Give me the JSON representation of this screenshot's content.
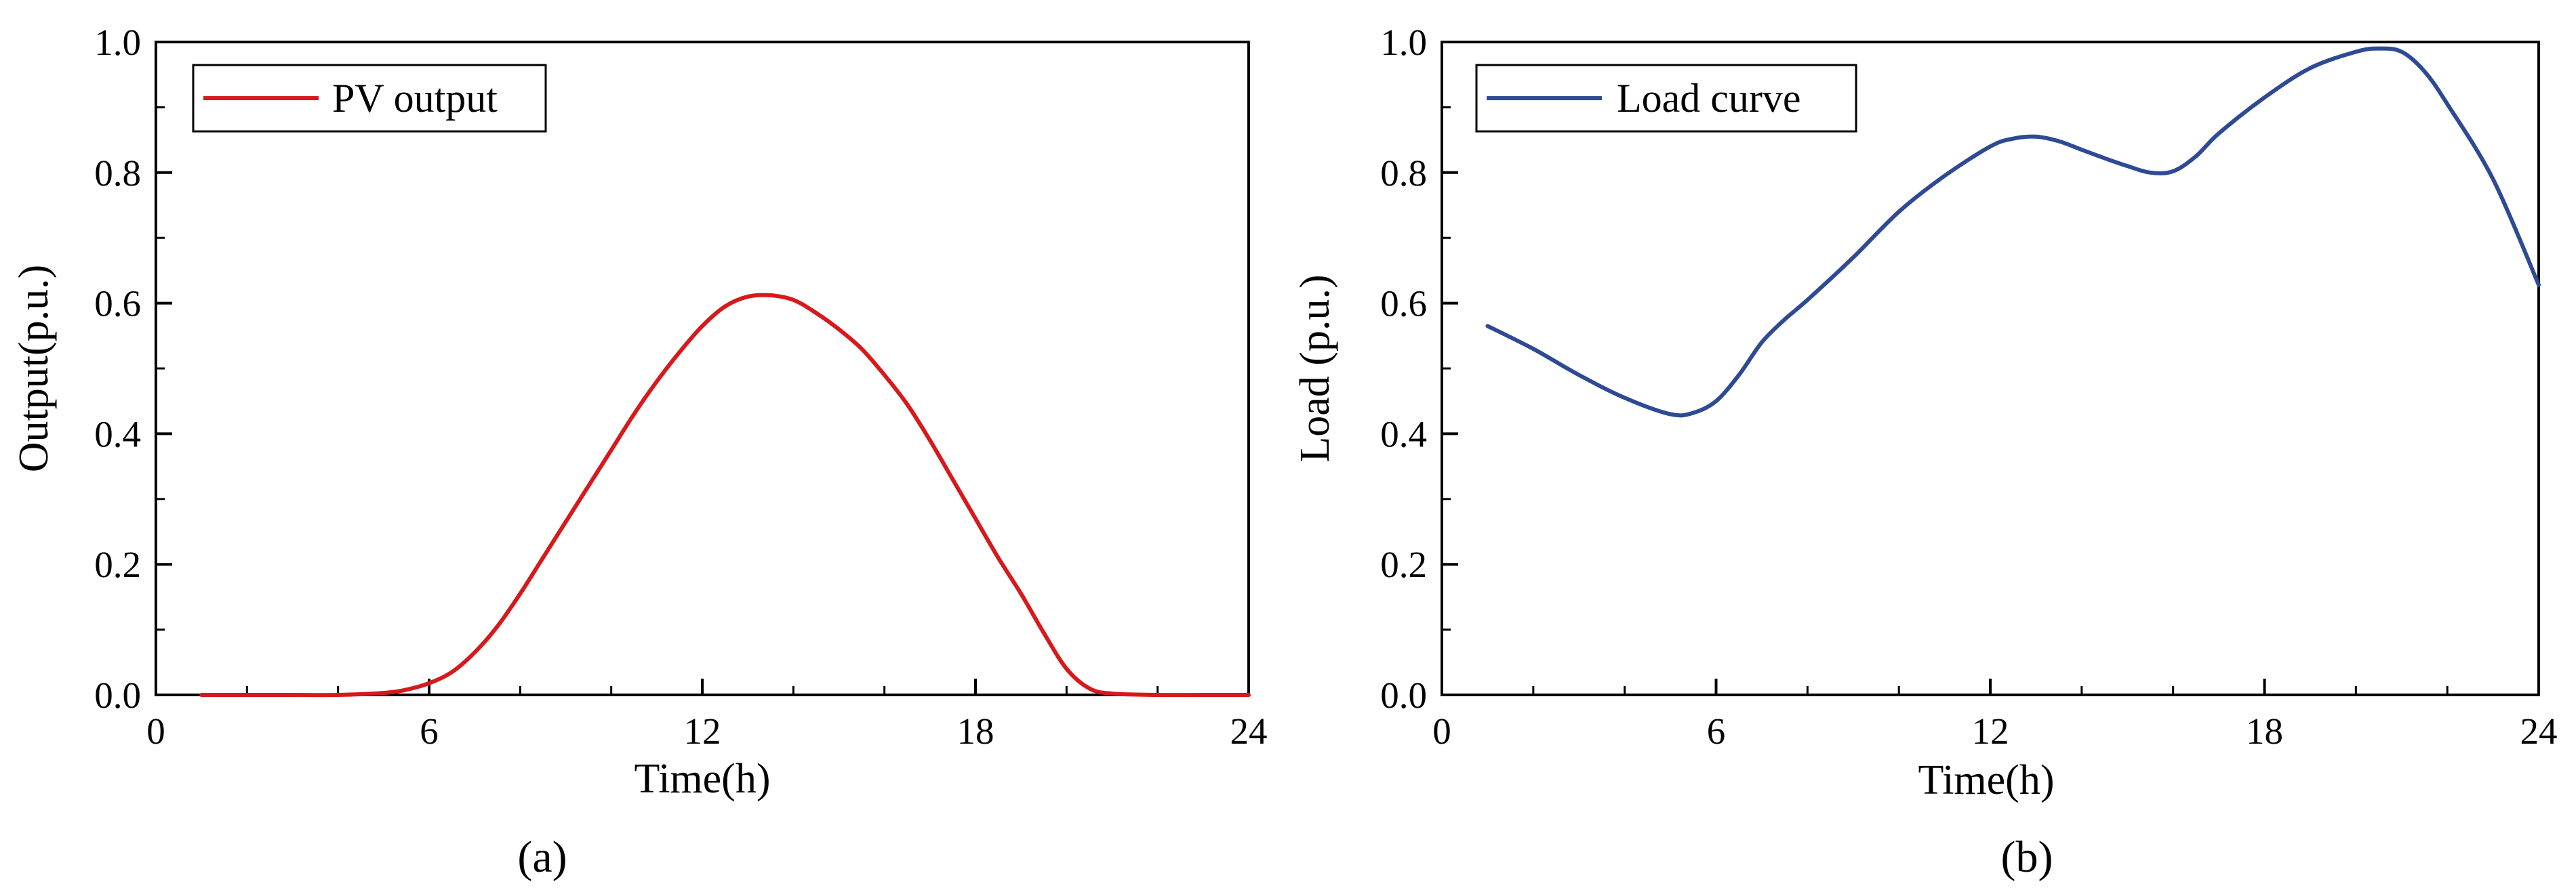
{
  "colors": {
    "pv": "#d7191c",
    "load": "#2f4a94",
    "axis": "#000000"
  },
  "chart_data": [
    {
      "type": "line",
      "panel_label": "(a)",
      "title": "",
      "xlabel": "Time(h)",
      "ylabel": "Output(p.u.)",
      "xlim": [
        0,
        24
      ],
      "ylim": [
        0,
        1.0
      ],
      "xticks": [
        0,
        6,
        12,
        18,
        24
      ],
      "yticks": [
        0.0,
        0.2,
        0.4,
        0.6,
        0.8,
        1.0
      ],
      "xtick_labels": [
        "0",
        "6",
        "12",
        "18",
        "24"
      ],
      "ytick_labels": [
        "0.0",
        "0.2",
        "0.4",
        "0.6",
        "0.8",
        "1.0"
      ],
      "grid": false,
      "legend": "top-left",
      "series": [
        {
          "name": "PV output",
          "color": "#d7191c",
          "x": [
            1,
            2,
            3,
            4,
            5,
            5.5,
            6,
            6.5,
            7,
            7.5,
            8,
            8.5,
            9,
            9.5,
            10,
            10.5,
            11,
            11.5,
            12,
            12.5,
            13,
            13.5,
            14,
            14.5,
            15,
            15.5,
            16,
            16.5,
            17,
            17.5,
            18,
            18.5,
            19,
            19.5,
            20,
            20.5,
            21,
            22,
            23,
            24
          ],
          "y": [
            0,
            0,
            0,
            0,
            0.003,
            0.008,
            0.018,
            0.035,
            0.065,
            0.105,
            0.155,
            0.21,
            0.265,
            0.32,
            0.375,
            0.43,
            0.48,
            0.525,
            0.565,
            0.595,
            0.61,
            0.612,
            0.605,
            0.585,
            0.56,
            0.53,
            0.49,
            0.445,
            0.39,
            0.33,
            0.27,
            0.21,
            0.155,
            0.095,
            0.04,
            0.01,
            0.002,
            0,
            0,
            0
          ]
        }
      ]
    },
    {
      "type": "line",
      "panel_label": "(b)",
      "title": "",
      "xlabel": "Time(h)",
      "ylabel": "Load (p.u.)",
      "xlim": [
        0,
        24
      ],
      "ylim": [
        0,
        1.0
      ],
      "xticks": [
        0,
        6,
        12,
        18,
        24
      ],
      "yticks": [
        0.0,
        0.2,
        0.4,
        0.6,
        0.8,
        1.0
      ],
      "xtick_labels": [
        "0",
        "6",
        "12",
        "18",
        "24"
      ],
      "ytick_labels": [
        "0.0",
        "0.2",
        "0.4",
        "0.6",
        "0.8",
        "1.0"
      ],
      "grid": false,
      "legend": "top-left",
      "series": [
        {
          "name": "Load curve",
          "color": "#2f4a94",
          "x": [
            1,
            2,
            3,
            4,
            5,
            5.5,
            6,
            6.5,
            7,
            7.5,
            8,
            9,
            10,
            11,
            12,
            12.5,
            13,
            13.5,
            14,
            14.5,
            15,
            15.5,
            16,
            16.5,
            17,
            18,
            19,
            20,
            20.5,
            21,
            21.5,
            22,
            23,
            24
          ],
          "y": [
            0.565,
            0.53,
            0.49,
            0.455,
            0.43,
            0.432,
            0.45,
            0.49,
            0.54,
            0.575,
            0.605,
            0.67,
            0.74,
            0.795,
            0.84,
            0.852,
            0.855,
            0.848,
            0.835,
            0.822,
            0.81,
            0.8,
            0.802,
            0.825,
            0.86,
            0.915,
            0.96,
            0.985,
            0.99,
            0.985,
            0.955,
            0.905,
            0.79,
            0.628
          ]
        }
      ]
    }
  ]
}
